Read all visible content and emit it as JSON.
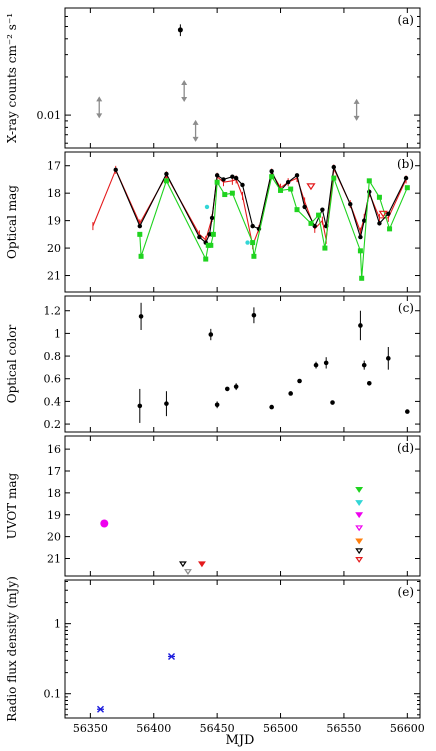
{
  "xaxis": {
    "label": "MJD",
    "lim": [
      56330,
      56610
    ],
    "ticks": [
      56350,
      56400,
      56450,
      56500,
      56550,
      56600
    ]
  },
  "colors": {
    "black": "#000000",
    "red": "#e41a1c",
    "green": "#1fd31f",
    "grey": "#8c8c8c",
    "cyan": "#33d6d6",
    "magenta": "#ee00ee",
    "orange": "#ff7f0e",
    "blue": "#1c1cdd"
  },
  "chart_data": [
    {
      "type": "scatter",
      "panel_label": "(a)",
      "ylabel": "X-ray counts cm⁻² s⁻¹",
      "yscale": "log",
      "ylim": [
        0.0055,
        0.07
      ],
      "ytick_labels": [
        {
          "value": 0.01,
          "label": "0.01"
        }
      ],
      "detections": [
        {
          "x": 56421,
          "y": 0.047,
          "yerr": 0.005
        }
      ],
      "upper_limits": [
        {
          "x": 56357,
          "y": 0.0115
        },
        {
          "x": 56424,
          "y": 0.0155
        },
        {
          "x": 56433,
          "y": 0.0075
        },
        {
          "x": 56560,
          "y": 0.011
        }
      ]
    },
    {
      "type": "line",
      "panel_label": "(b)",
      "ylabel": "Optical mag",
      "yinverted": true,
      "ylim": [
        21.6,
        16.5
      ],
      "yticks": [
        17,
        18,
        19,
        20,
        21
      ],
      "series": [
        {
          "color": "red",
          "x": [
            56352,
            56370,
            56389,
            56410,
            56436,
            56441,
            56446,
            56450,
            56455,
            56462,
            56465,
            56470,
            56478,
            56483,
            56493,
            56500,
            56506,
            56513,
            56519,
            56527,
            56533,
            56536,
            56542,
            56555,
            56563,
            56566,
            56570,
            56578,
            56585,
            56599
          ],
          "y": [
            19.2,
            17.15,
            19.1,
            17.35,
            19.5,
            19.7,
            18.9,
            17.4,
            17.6,
            17.55,
            17.5,
            18.1,
            19.9,
            19.3,
            17.25,
            17.8,
            17.6,
            17.45,
            18.3,
            19.3,
            19.0,
            19.7,
            17.1,
            18.4,
            19.4,
            18.9,
            18.0,
            18.9,
            18.9,
            17.5
          ]
        },
        {
          "color": "black",
          "x": [
            56370,
            56389,
            56410,
            56436,
            56441,
            56444,
            56446,
            56450,
            56455,
            56462,
            56465,
            56470,
            56478,
            56483,
            56493,
            56500,
            56506,
            56513,
            56519,
            56527,
            56533,
            56536,
            56542,
            56555,
            56563,
            56566,
            56570,
            56578,
            56585,
            56599
          ],
          "y": [
            17.15,
            19.2,
            17.3,
            19.6,
            19.8,
            19.5,
            18.9,
            17.35,
            17.5,
            17.4,
            17.45,
            17.7,
            19.2,
            19.3,
            17.2,
            17.9,
            17.6,
            17.35,
            18.5,
            19.2,
            18.6,
            19.2,
            17.05,
            18.4,
            19.6,
            19.0,
            17.95,
            19.1,
            18.75,
            17.45
          ]
        },
        {
          "color": "green",
          "x": [
            56389,
            56390,
            56410,
            56441,
            56443,
            56445,
            56447,
            56450,
            56456,
            56462,
            56478,
            56479,
            56493,
            56500,
            56508,
            56513,
            56524,
            56530,
            56535,
            56542,
            56563,
            56564,
            56570,
            56578,
            56586,
            56600
          ],
          "y": [
            19.5,
            20.3,
            17.55,
            20.4,
            19.9,
            19.9,
            19.5,
            17.6,
            18.05,
            18.0,
            19.8,
            20.3,
            17.4,
            17.9,
            17.85,
            18.6,
            19.1,
            18.8,
            20.0,
            17.45,
            20.1,
            21.1,
            17.55,
            18.15,
            19.3,
            17.8
          ]
        }
      ],
      "extra_points": [
        {
          "color": "cyan",
          "x": 56442,
          "y": 18.5
        },
        {
          "color": "cyan",
          "x": 56474,
          "y": 19.8
        }
      ]
    },
    {
      "type": "scatter",
      "panel_label": "(c)",
      "ylabel": "Optical color",
      "ylim": [
        0.13,
        1.33
      ],
      "yticks": [
        0.2,
        0.4,
        0.6,
        0.8,
        1.0,
        1.2
      ],
      "ytick_labels": [
        "0.2",
        "0.4",
        "0.6",
        "0.8",
        "1",
        "1.2"
      ],
      "points": [
        {
          "x": 56389,
          "y": 0.36,
          "yerr": 0.15
        },
        {
          "x": 56390,
          "y": 1.15,
          "yerr": 0.12
        },
        {
          "x": 56410,
          "y": 0.38,
          "yerr": 0.11
        },
        {
          "x": 56445,
          "y": 0.99,
          "yerr": 0.05
        },
        {
          "x": 56450,
          "y": 0.37,
          "yerr": 0.03
        },
        {
          "x": 56458,
          "y": 0.51,
          "yerr": 0.0
        },
        {
          "x": 56465,
          "y": 0.53,
          "yerr": 0.03
        },
        {
          "x": 56479,
          "y": 1.16,
          "yerr": 0.07
        },
        {
          "x": 56493,
          "y": 0.35,
          "yerr": 0.0
        },
        {
          "x": 56508,
          "y": 0.47,
          "yerr": 0.0
        },
        {
          "x": 56515,
          "y": 0.58,
          "yerr": 0.0
        },
        {
          "x": 56528,
          "y": 0.72,
          "yerr": 0.03
        },
        {
          "x": 56536,
          "y": 0.74,
          "yerr": 0.05
        },
        {
          "x": 56541,
          "y": 0.39,
          "yerr": 0.0
        },
        {
          "x": 56563,
          "y": 1.07,
          "yerr": 0.13
        },
        {
          "x": 56566,
          "y": 0.72,
          "yerr": 0.04
        },
        {
          "x": 56570,
          "y": 0.56,
          "yerr": 0.02
        },
        {
          "x": 56585,
          "y": 0.78,
          "yerr": 0.1
        },
        {
          "x": 56600,
          "y": 0.31,
          "yerr": 0.0
        }
      ]
    },
    {
      "type": "scatter",
      "panel_label": "(d)",
      "ylabel": "UVOT mag",
      "yinverted": true,
      "ylim": [
        21.8,
        15.4
      ],
      "yticks": [
        16,
        17,
        18,
        19,
        20,
        21
      ],
      "detections": [
        {
          "x": 56361,
          "y": 19.4,
          "color": "magenta"
        }
      ],
      "upper_limits": [
        {
          "x": 56423,
          "y": 21.25,
          "color": "black"
        },
        {
          "x": 56427,
          "y": 21.6,
          "color": "grey"
        },
        {
          "x": 56438,
          "y": 21.25,
          "color": "red"
        },
        {
          "x": 56562,
          "y": 17.85,
          "color": "green"
        },
        {
          "x": 56562,
          "y": 18.45,
          "color": "cyan"
        },
        {
          "x": 56562,
          "y": 19.0,
          "color": "magenta"
        },
        {
          "x": 56562,
          "y": 19.6,
          "color": "magenta"
        },
        {
          "x": 56562,
          "y": 20.2,
          "color": "orange"
        },
        {
          "x": 56562,
          "y": 20.65,
          "color": "black"
        },
        {
          "x": 56562,
          "y": 21.05,
          "color": "red"
        }
      ]
    },
    {
      "type": "scatter",
      "panel_label": "(e)",
      "ylabel": "Radio flux density (mJy)",
      "yscale": "log",
      "ylim": [
        0.045,
        4.2
      ],
      "ytick_labels": [
        {
          "value": 0.1,
          "label": "0.1"
        },
        {
          "value": 1,
          "label": "1"
        }
      ],
      "points": [
        {
          "x": 56358,
          "y": 0.06,
          "color": "blue"
        },
        {
          "x": 56414,
          "y": 0.34,
          "color": "blue"
        }
      ]
    }
  ]
}
